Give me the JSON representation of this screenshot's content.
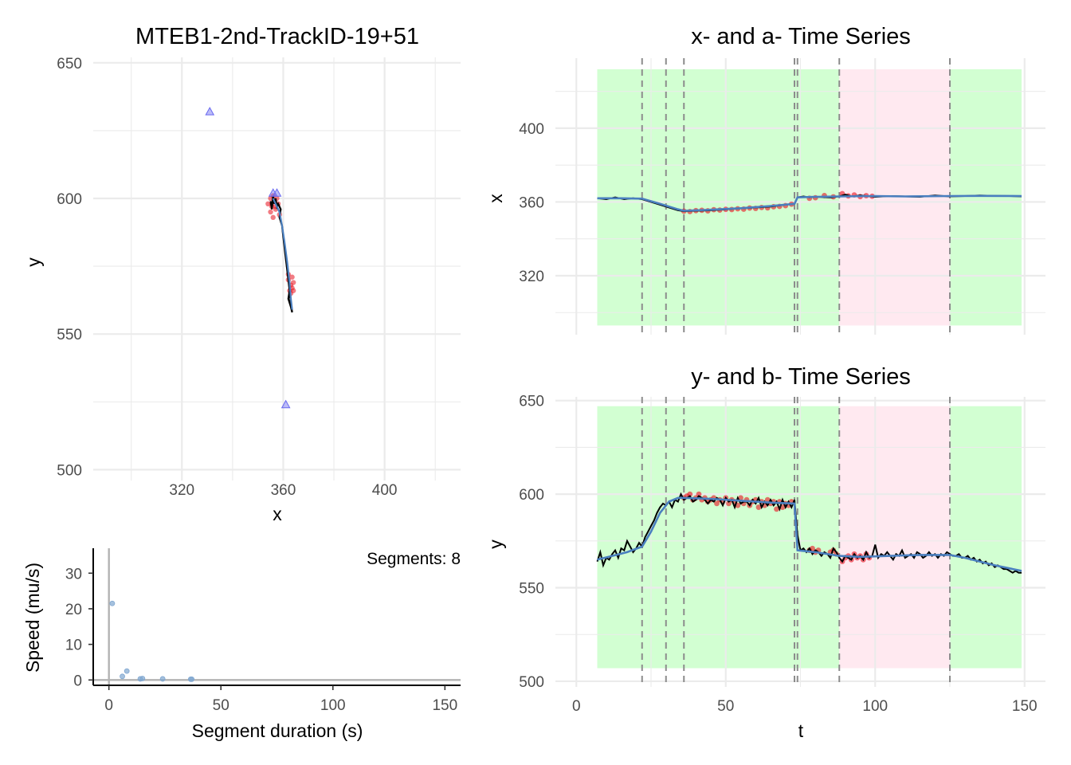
{
  "colors": {
    "background": "#ffffff",
    "grid": "#ebebeb",
    "green_band": "#ccffcc",
    "pink_band": "#ffe6ee",
    "dashed_line": "#8c8c8c",
    "black_track": "#000000",
    "blue_fit": "#4a7fbf",
    "red_points": "#e8101e",
    "blue_triangles": "#6a6af0",
    "speed_points": "#7fa6d0"
  },
  "chart_data": [
    {
      "id": "track",
      "type": "scatter",
      "title": "MTEB1-2nd-TrackID-19+51",
      "xlabel": "x",
      "ylabel": "y",
      "xlim": [
        285,
        430
      ],
      "ylim": [
        496,
        652
      ],
      "x_ticks": [
        320,
        360,
        400
      ],
      "y_ticks": [
        500,
        550,
        600,
        650
      ],
      "grid": true,
      "series": [
        {
          "role": "track",
          "color": "black",
          "points": [
            [
              355,
              599
            ],
            [
              355.5,
              596
            ],
            [
              356,
              601
            ],
            [
              356.5,
              598
            ],
            [
              357,
              600
            ],
            [
              357.5,
              597
            ],
            [
              358,
              598
            ],
            [
              359,
              596
            ],
            [
              358.5,
              593
            ],
            [
              359.5,
              590
            ],
            [
              360,
              586
            ],
            [
              360.5,
              582
            ],
            [
              361,
              578
            ],
            [
              361.5,
              574
            ],
            [
              362,
              570
            ],
            [
              362.5,
              566
            ],
            [
              362,
              563
            ],
            [
              363,
              560
            ],
            [
              363.5,
              558
            ],
            [
              363,
              562
            ],
            [
              362.5,
              565
            ]
          ]
        },
        {
          "role": "fit",
          "color": "blue",
          "points": [
            [
              356,
              600
            ],
            [
              357,
              598
            ],
            [
              358.5,
              595
            ],
            [
              359.5,
              590
            ],
            [
              360.5,
              584
            ],
            [
              361.5,
              577
            ],
            [
              362.5,
              569
            ],
            [
              363,
              563
            ],
            [
              363.5,
              559
            ]
          ]
        },
        {
          "role": "segment points",
          "color": "red",
          "points": [
            [
              354,
              598
            ],
            [
              355,
              600
            ],
            [
              355.5,
              597
            ],
            [
              356,
              601
            ],
            [
              356.5,
              599
            ],
            [
              357,
              597
            ],
            [
              357.5,
              600
            ],
            [
              358,
              598
            ],
            [
              355,
              595
            ],
            [
              356,
              593
            ],
            [
              357,
              596
            ],
            [
              358.5,
              594
            ],
            [
              355.5,
              598
            ],
            [
              362,
              570
            ],
            [
              363,
              568
            ],
            [
              362.5,
              566
            ],
            [
              363.5,
              567
            ],
            [
              364,
              569
            ],
            [
              362,
              572
            ],
            [
              363,
              565
            ],
            [
              363.5,
              571
            ],
            [
              364,
              566
            ]
          ]
        },
        {
          "role": "marker",
          "shape": "triangle",
          "color": "blue",
          "points": [
            [
              331,
              632
            ],
            [
              356,
              602
            ],
            [
              357.5,
              602
            ],
            [
              361,
              524
            ]
          ]
        }
      ]
    },
    {
      "id": "speed",
      "type": "scatter",
      "xlabel": "Segment duration (s)",
      "ylabel": "Speed (mu/s)",
      "annotation": "Segments: 8",
      "xlim": [
        -7,
        157
      ],
      "ylim": [
        -1.5,
        37
      ],
      "x_ticks": [
        0,
        50,
        100,
        150
      ],
      "y_ticks": [
        0,
        10,
        20,
        30
      ],
      "points": [
        [
          1.5,
          21.5
        ],
        [
          6,
          1
        ],
        [
          8,
          2.5
        ],
        [
          14,
          0.3
        ],
        [
          15,
          0.4
        ],
        [
          24,
          0.3
        ],
        [
          36.5,
          0.2
        ],
        [
          37,
          0.2
        ]
      ]
    },
    {
      "id": "x_series",
      "type": "line",
      "title": "x- and a- Time Series",
      "xlabel": "",
      "ylabel": "x",
      "xlim": [
        -7,
        157
      ],
      "ylim": [
        288,
        438
      ],
      "y_ticks": [
        320,
        360,
        400
      ],
      "x_ticks": [
        0,
        50,
        100,
        150
      ],
      "bands": [
        {
          "from": 7,
          "to": 88,
          "state": "green"
        },
        {
          "from": 88,
          "to": 125,
          "state": "pink"
        },
        {
          "from": 125,
          "to": 149,
          "state": "green"
        }
      ],
      "band_range": [
        293,
        432
      ],
      "changepoints": [
        22,
        30,
        36,
        73,
        74,
        88,
        125
      ],
      "series": [
        {
          "role": "track",
          "color": "black",
          "x": [
            7,
            10,
            13,
            16,
            19,
            22,
            25,
            28,
            31,
            34,
            36,
            40,
            45,
            50,
            55,
            60,
            65,
            70,
            73,
            74,
            76,
            78,
            80,
            85,
            88,
            90,
            92,
            95,
            100,
            105,
            110,
            115,
            120,
            125,
            130,
            135,
            140,
            145,
            149
          ],
          "y": [
            362,
            361.5,
            362.5,
            361.5,
            362,
            361.5,
            360,
            358.5,
            357,
            355.5,
            355,
            355.2,
            355.5,
            356,
            356.5,
            357,
            357.5,
            358.5,
            359,
            362.5,
            363,
            362.5,
            362.8,
            362.5,
            363,
            364,
            363,
            363.5,
            362.8,
            363.2,
            363,
            362.8,
            363.5,
            363,
            363.2,
            363.5,
            363.3,
            363.2,
            363
          ]
        },
        {
          "role": "fit",
          "color": "blue",
          "x": [
            7,
            15,
            22,
            28,
            34,
            36,
            45,
            55,
            65,
            73,
            74,
            80,
            88,
            100,
            110,
            125,
            135,
            149
          ],
          "y": [
            362,
            362,
            361.8,
            359,
            356,
            355.2,
            355.8,
            356.6,
            357.8,
            359,
            362.5,
            362.8,
            363,
            363.2,
            363,
            363.2,
            363.3,
            363.2
          ]
        },
        {
          "role": "segment points",
          "color": "red",
          "x": [
            36,
            38,
            40,
            42,
            44,
            46,
            48,
            50,
            52,
            54,
            56,
            58,
            60,
            62,
            64,
            66,
            68,
            70,
            72,
            78,
            80,
            83,
            86,
            89,
            91,
            93,
            95,
            97,
            99
          ],
          "y": [
            355,
            354.8,
            355.3,
            355.5,
            355.2,
            355.8,
            355.6,
            356,
            355.9,
            356.3,
            356.1,
            356.7,
            356.5,
            357,
            356.8,
            357.4,
            357.6,
            358,
            358.8,
            362,
            362.3,
            363.5,
            362.8,
            364.5,
            363.3,
            363.8,
            362.9,
            363.4,
            363.1
          ]
        }
      ]
    },
    {
      "id": "y_series",
      "type": "line",
      "title": "y- and b- Time Series",
      "xlabel": "t",
      "ylabel": "y",
      "xlim": [
        -7,
        157
      ],
      "ylim": [
        497,
        652
      ],
      "y_ticks": [
        500,
        550,
        600,
        650
      ],
      "x_ticks": [
        0,
        50,
        100,
        150
      ],
      "x_tick_labels": [
        "0",
        "50",
        "100",
        "150"
      ],
      "bands": [
        {
          "from": 7,
          "to": 88,
          "state": "green"
        },
        {
          "from": 88,
          "to": 125,
          "state": "pink"
        },
        {
          "from": 125,
          "to": 149,
          "state": "green"
        }
      ],
      "band_range": [
        507,
        647
      ],
      "changepoints": [
        22,
        30,
        36,
        73,
        74,
        88,
        125
      ],
      "series": [
        {
          "role": "track",
          "color": "black",
          "x": [
            7,
            8,
            9,
            10,
            11,
            12,
            13,
            14,
            15,
            16,
            17,
            18,
            19,
            20,
            21,
            22,
            23,
            24,
            25,
            26,
            27,
            28,
            29,
            30,
            31,
            32,
            33,
            34,
            35,
            36,
            37,
            38,
            39,
            40,
            41,
            42,
            43,
            44,
            45,
            46,
            47,
            48,
            49,
            50,
            51,
            52,
            53,
            54,
            55,
            56,
            57,
            58,
            59,
            60,
            61,
            62,
            63,
            64,
            65,
            66,
            67,
            68,
            69,
            70,
            71,
            72,
            73,
            74,
            75,
            76,
            77,
            78,
            79,
            80,
            81,
            82,
            83,
            84,
            85,
            86,
            87,
            88,
            89,
            90,
            91,
            92,
            93,
            94,
            95,
            96,
            97,
            98,
            99,
            100,
            101,
            102,
            103,
            104,
            105,
            106,
            107,
            108,
            109,
            110,
            111,
            112,
            113,
            114,
            115,
            116,
            117,
            118,
            119,
            120,
            121,
            122,
            123,
            124,
            125,
            126,
            127,
            128,
            129,
            130,
            131,
            132,
            133,
            134,
            135,
            136,
            137,
            138,
            139,
            140,
            141,
            142,
            143,
            144,
            145,
            146,
            147,
            148,
            149
          ],
          "y": [
            564,
            569,
            562,
            566,
            565,
            568,
            570,
            566,
            571,
            570,
            575,
            572,
            569,
            571,
            574,
            572,
            577,
            580,
            583,
            586,
            590,
            593,
            595,
            594,
            596,
            593,
            597,
            596,
            600,
            597,
            598,
            599,
            596,
            597,
            599,
            598,
            597,
            595,
            597,
            596,
            598,
            597,
            594,
            598,
            596,
            597,
            593,
            598,
            595,
            596,
            596,
            594,
            597,
            595,
            598,
            593,
            596,
            594,
            597,
            594,
            596,
            592,
            597,
            593,
            596,
            593,
            597,
            578,
            570,
            571,
            569,
            571,
            568,
            570,
            569,
            567,
            569,
            568,
            566,
            571,
            569,
            566,
            564,
            567,
            566,
            565,
            568,
            566,
            567,
            565,
            569,
            566,
            567,
            573,
            566,
            568,
            567,
            569,
            567,
            565,
            568,
            567,
            570,
            566,
            567,
            568,
            566,
            569,
            568,
            566,
            567,
            569,
            567,
            568,
            566,
            568,
            567,
            569,
            568,
            567,
            567,
            568,
            566,
            566,
            567,
            565,
            566,
            564,
            565,
            563,
            564,
            562,
            563,
            561,
            562,
            561,
            560,
            560,
            559,
            558,
            559,
            558,
            558
          ]
        },
        {
          "role": "fit",
          "color": "blue",
          "x": [
            7,
            12,
            17,
            22,
            25,
            28,
            31,
            34,
            36,
            45,
            55,
            65,
            73,
            74,
            80,
            88,
            95,
            105,
            115,
            125,
            130,
            140,
            149
          ],
          "y": [
            565,
            567,
            569,
            572,
            580,
            590,
            596,
            598,
            598,
            597.5,
            596.5,
            595.5,
            595,
            570,
            569,
            567,
            566.5,
            567,
            567.5,
            567.5,
            566,
            562,
            559
          ]
        },
        {
          "role": "segment points",
          "color": "red",
          "x": [
            36,
            37,
            38,
            39,
            40,
            41,
            42,
            43,
            44,
            45,
            46,
            47,
            48,
            49,
            50,
            51,
            52,
            53,
            54,
            55,
            56,
            57,
            58,
            59,
            60,
            61,
            62,
            63,
            64,
            65,
            66,
            67,
            68,
            69,
            70,
            71,
            72,
            78,
            79,
            80,
            81,
            85,
            86,
            87,
            89,
            90,
            91,
            92,
            93,
            94,
            95,
            96,
            97,
            98
          ],
          "y": [
            598,
            599,
            600,
            597,
            598,
            600,
            597,
            598,
            596,
            597,
            598,
            595,
            597,
            596,
            598,
            595,
            597,
            596,
            594,
            598,
            595,
            597,
            594,
            596,
            597,
            593,
            596,
            594,
            597,
            595,
            596,
            592,
            596,
            593,
            595,
            594,
            596,
            570,
            571,
            569,
            570,
            569,
            570,
            568,
            564,
            566,
            567,
            565,
            568,
            566,
            567,
            565,
            568,
            566
          ]
        }
      ]
    }
  ]
}
